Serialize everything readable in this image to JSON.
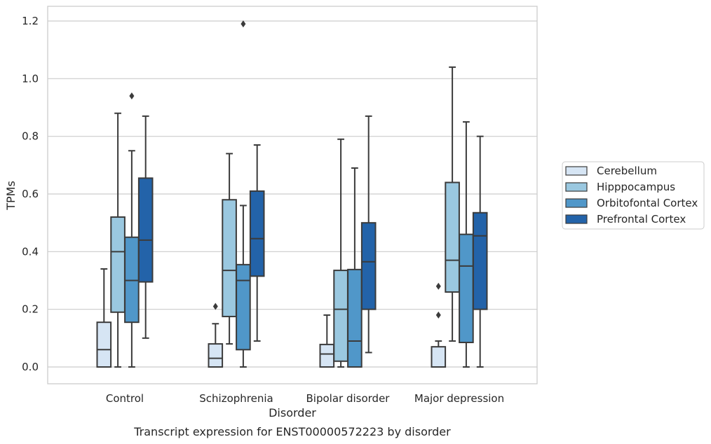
{
  "caption": "Transcript expression for ENST00000572223 by disorder",
  "chart_data": {
    "type": "boxplot",
    "xlabel": "Disorder",
    "ylabel": "TPMs",
    "ylim": [
      -0.057,
      1.25
    ],
    "yticks": [
      "0.0",
      "0.2",
      "0.4",
      "0.6",
      "0.8",
      "1.0",
      "1.2"
    ],
    "ytick_values": [
      0.0,
      0.2,
      0.4,
      0.6,
      0.8,
      1.0,
      1.2
    ],
    "grid": "horizontal",
    "legend_position": "right",
    "categories": [
      "Control",
      "Schizophrenia",
      "Bipolar disorder",
      "Major depression"
    ],
    "series": [
      {
        "name": "Cerebellum",
        "color": "#d6e5f4",
        "boxes": [
          {
            "whislo": 0.0,
            "q1": 0.0,
            "med": 0.06,
            "q3": 0.155,
            "whishi": 0.34,
            "fliers": []
          },
          {
            "whislo": 0.0,
            "q1": 0.0,
            "med": 0.03,
            "q3": 0.08,
            "whishi": 0.15,
            "fliers": [
              0.21
            ]
          },
          {
            "whislo": 0.0,
            "q1": 0.0,
            "med": 0.045,
            "q3": 0.078,
            "whishi": 0.18,
            "fliers": []
          },
          {
            "whislo": 0.0,
            "q1": 0.0,
            "med": 0.0,
            "q3": 0.07,
            "whishi": 0.09,
            "fliers": [
              0.18,
              0.28
            ]
          }
        ]
      },
      {
        "name": "Hipppocampus",
        "color": "#9ac8e0",
        "boxes": [
          {
            "whislo": 0.0,
            "q1": 0.19,
            "med": 0.4,
            "q3": 0.52,
            "whishi": 0.88,
            "fliers": []
          },
          {
            "whislo": 0.08,
            "q1": 0.175,
            "med": 0.335,
            "q3": 0.58,
            "whishi": 0.74,
            "fliers": []
          },
          {
            "whislo": 0.0,
            "q1": 0.02,
            "med": 0.2,
            "q3": 0.335,
            "whishi": 0.79,
            "fliers": []
          },
          {
            "whislo": 0.09,
            "q1": 0.26,
            "med": 0.37,
            "q3": 0.64,
            "whishi": 1.04,
            "fliers": []
          }
        ]
      },
      {
        "name": "Orbitofontal Cortex",
        "color": "#5097c9",
        "boxes": [
          {
            "whislo": 0.0,
            "q1": 0.155,
            "med": 0.3,
            "q3": 0.45,
            "whishi": 0.75,
            "fliers": [
              0.94
            ]
          },
          {
            "whislo": 0.0,
            "q1": 0.06,
            "med": 0.3,
            "q3": 0.355,
            "whishi": 0.56,
            "fliers": [
              1.19
            ]
          },
          {
            "whislo": 0.0,
            "q1": 0.0,
            "med": 0.09,
            "q3": 0.338,
            "whishi": 0.69,
            "fliers": []
          },
          {
            "whislo": 0.0,
            "q1": 0.085,
            "med": 0.35,
            "q3": 0.46,
            "whishi": 0.85,
            "fliers": []
          }
        ]
      },
      {
        "name": "Prefrontal Cortex",
        "color": "#2363a9",
        "boxes": [
          {
            "whislo": 0.1,
            "q1": 0.295,
            "med": 0.44,
            "q3": 0.655,
            "whishi": 0.87,
            "fliers": []
          },
          {
            "whislo": 0.09,
            "q1": 0.315,
            "med": 0.445,
            "q3": 0.61,
            "whishi": 0.77,
            "fliers": []
          },
          {
            "whislo": 0.05,
            "q1": 0.2,
            "med": 0.365,
            "q3": 0.5,
            "whishi": 0.87,
            "fliers": []
          },
          {
            "whislo": 0.0,
            "q1": 0.2,
            "med": 0.455,
            "q3": 0.535,
            "whishi": 0.8,
            "fliers": []
          }
        ]
      }
    ]
  }
}
